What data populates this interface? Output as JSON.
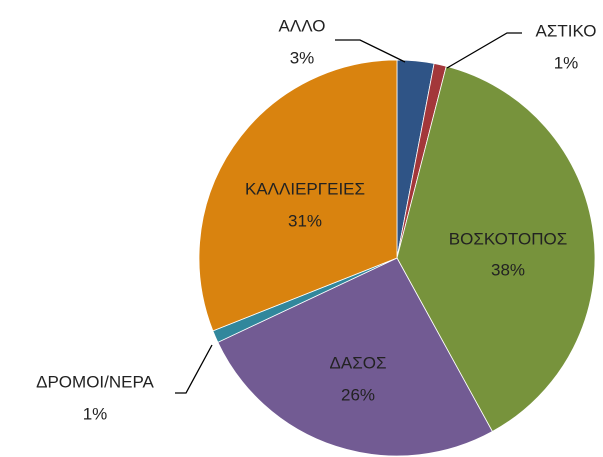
{
  "chart_data": {
    "type": "pie",
    "categories": [
      "ΑΛΛΟ",
      "ΑΣΤΙΚΟ",
      "ΒΟΣΚΟΤΟΠΟΣ",
      "ΔΑΣΟΣ",
      "ΔΡΟΜΟΙ/ΝΕΡΑ",
      "ΚΑΛΛΙΕΡΓΕΙΕΣ"
    ],
    "values": [
      3,
      1,
      38,
      26,
      1,
      31
    ],
    "value_labels": [
      "3%",
      "1%",
      "38%",
      "26%",
      "1%",
      "31%"
    ],
    "colors": [
      "#2f5486",
      "#a3373a",
      "#77933c",
      "#725b93",
      "#31879c",
      "#d9830f"
    ]
  }
}
